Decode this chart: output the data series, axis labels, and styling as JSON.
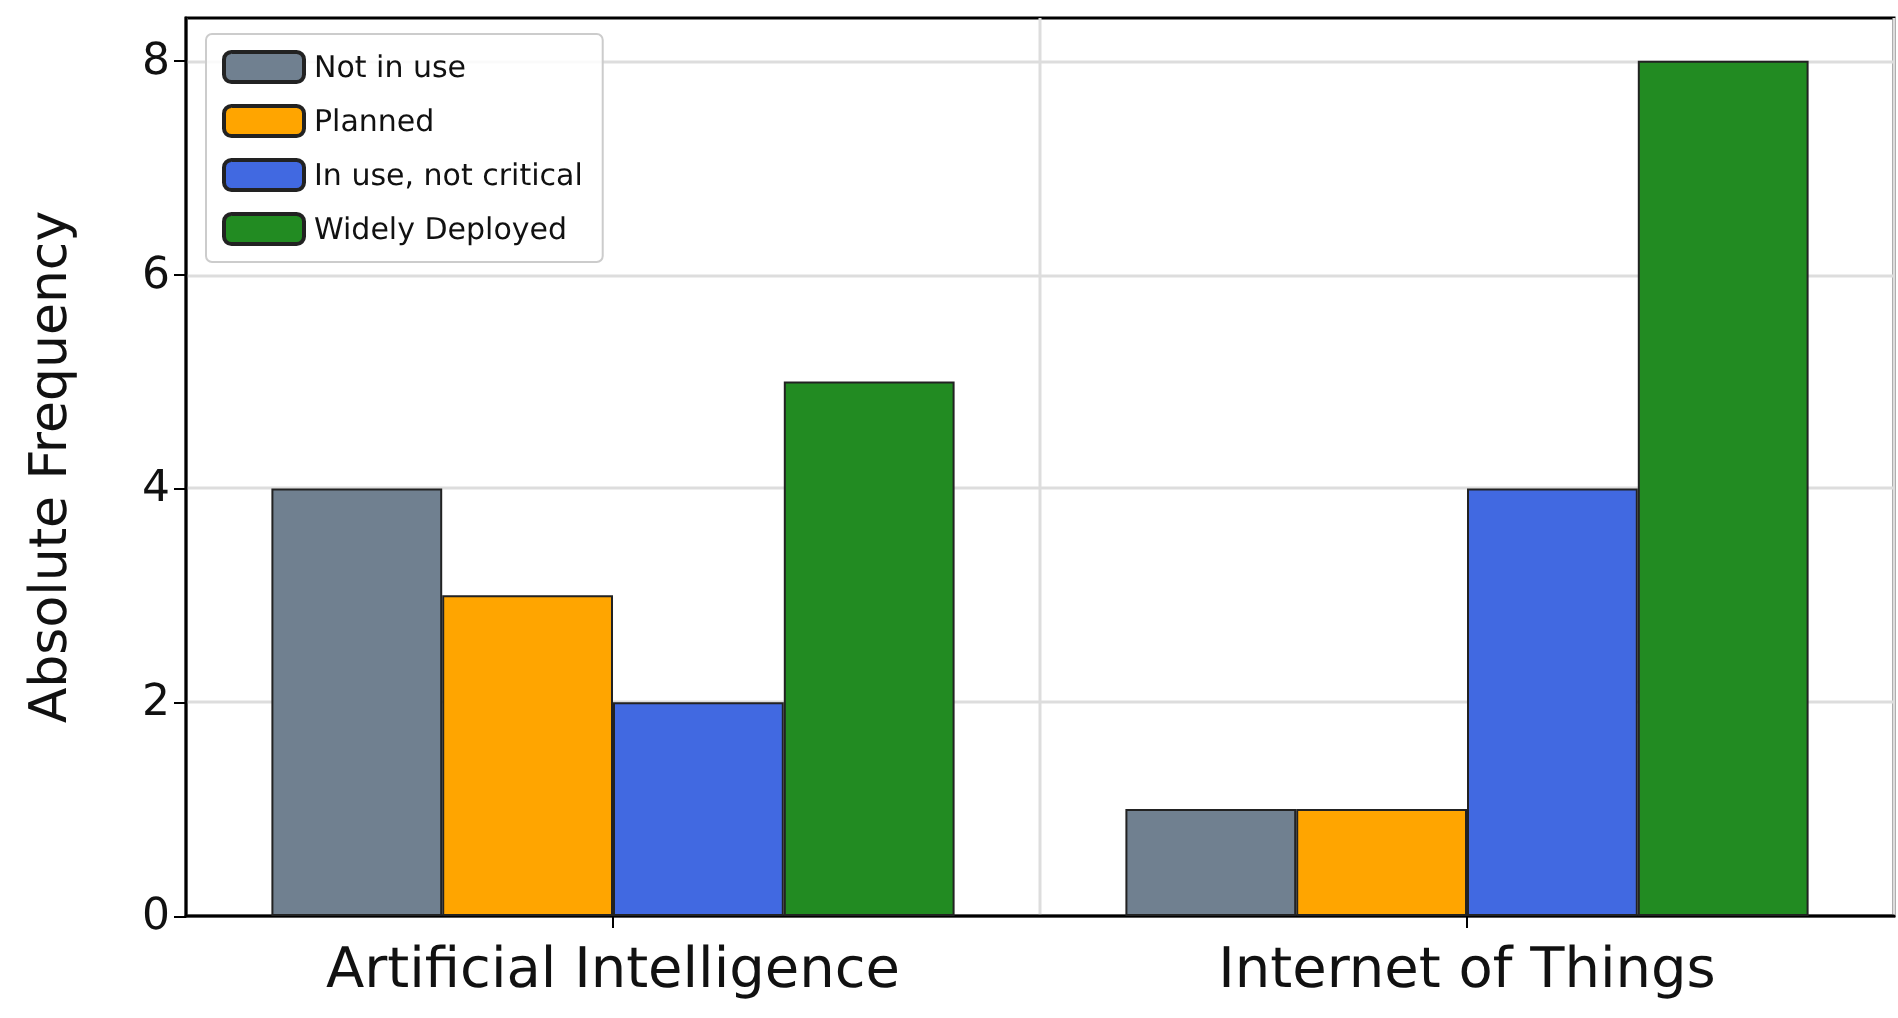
{
  "chart_data": {
    "type": "bar",
    "ylabel": "Absolute Frequency",
    "categories": [
      "Artificial Intelligence",
      "Internet of Things"
    ],
    "series": [
      {
        "name": "Not in use",
        "color": "#708090",
        "values": [
          4,
          1
        ]
      },
      {
        "name": "Planned",
        "color": "#ffa500",
        "values": [
          3,
          1
        ]
      },
      {
        "name": "In use, not critical",
        "color": "#4169e1",
        "values": [
          2,
          4
        ]
      },
      {
        "name": "Widely Deployed",
        "color": "#228b22",
        "values": [
          5,
          8
        ]
      }
    ],
    "ylim": [
      0,
      8.4
    ],
    "yticks": [
      0,
      2,
      4,
      6,
      8
    ],
    "grid": true,
    "legend": "top left"
  }
}
